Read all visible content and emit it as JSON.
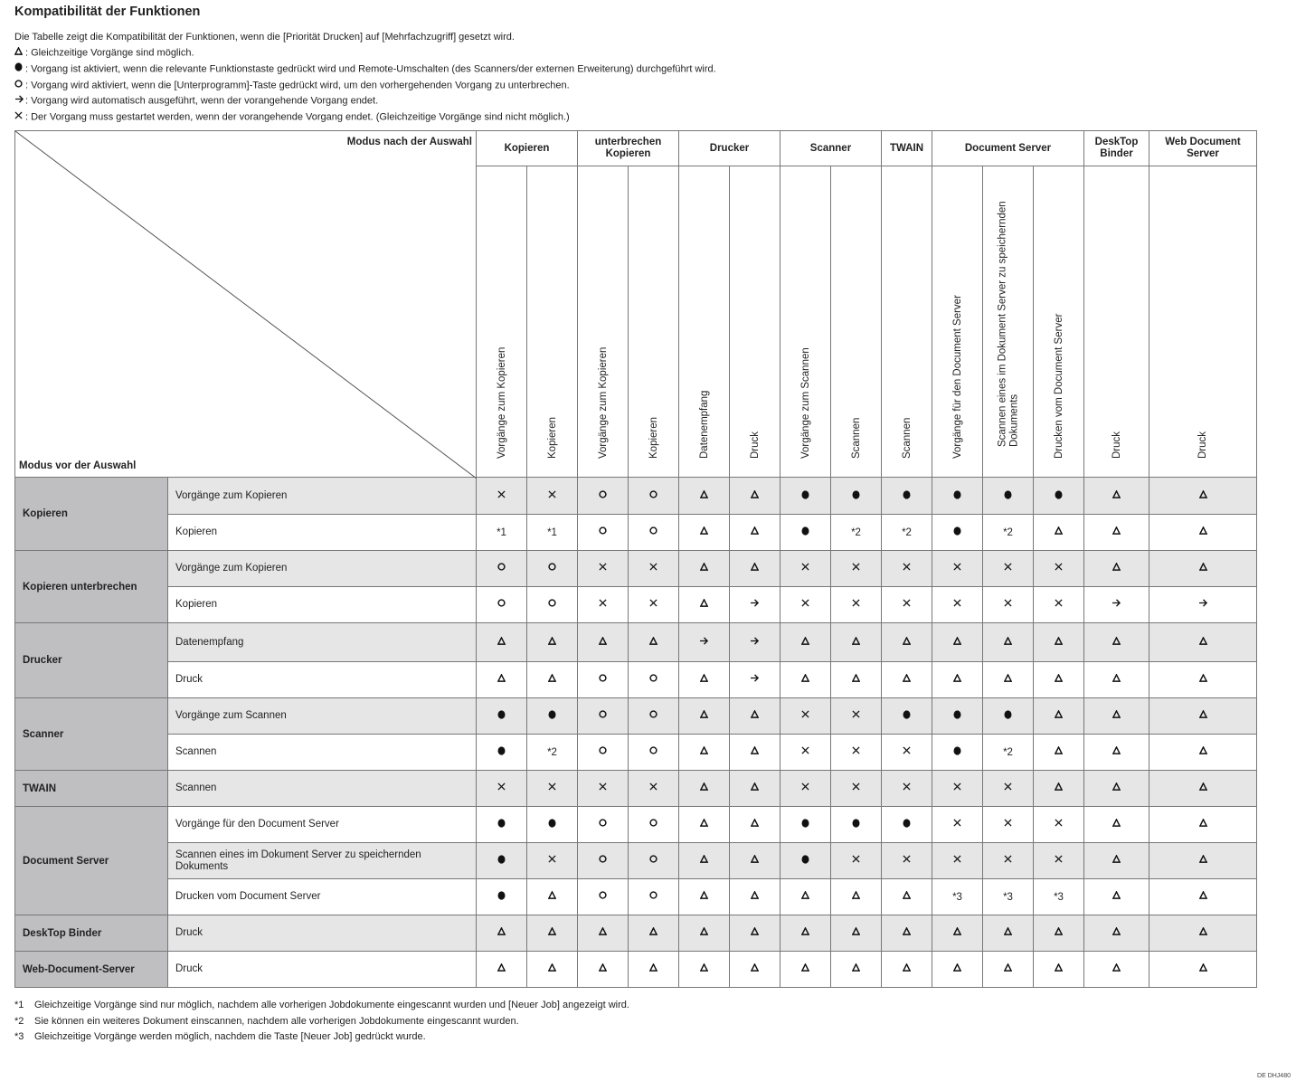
{
  "title": "Kompatibilität der Funktionen",
  "legend": {
    "intro": "Die Tabelle zeigt die Kompatibilität der Funktionen, wenn die [Priorität Drucken] auf [Mehrfachzugriff] gesetzt wird.",
    "items": [
      {
        "icon": "tri",
        "text": ": Gleichzeitige Vorgänge sind möglich."
      },
      {
        "icon": "dot",
        "text": ": Vorgang ist aktiviert, wenn die relevante Funktionstaste gedrückt wird und Remote-Umschalten (des Scanners/der externen Erweiterung) durchgeführt wird."
      },
      {
        "icon": "o",
        "text": ": Vorgang wird aktiviert, wenn die [Unterprogramm]-Taste gedrückt wird, um den vorhergehenden Vorgang zu unterbrechen."
      },
      {
        "icon": "arrow",
        "text": ": Vorgang wird automatisch ausgeführt, wenn der vorangehende Vorgang endet."
      },
      {
        "icon": "x",
        "text": ": Der Vorgang muss gestartet werden, wenn der vorangehende Vorgang endet. (Gleichzeitige Vorgänge sind nicht möglich.)"
      }
    ]
  },
  "table": {
    "corner_top": "Modus nach der Auswahl",
    "corner_bottom": "Modus vor der Auswahl",
    "column_groups": [
      {
        "label": "Kopieren",
        "cols": [
          "Vorgänge zum Kopieren",
          "Kopieren"
        ]
      },
      {
        "label": "unterbrechen Kopieren",
        "cols": [
          "Vorgänge zum Kopieren",
          "Kopieren"
        ]
      },
      {
        "label": "Drucker",
        "cols": [
          "Datenempfang",
          "Druck"
        ]
      },
      {
        "label": "Scanner",
        "cols": [
          "Vorgänge zum Scannen",
          "Scannen"
        ]
      },
      {
        "label": "TWAIN",
        "cols": [
          "Scannen"
        ]
      },
      {
        "label": "Document Server",
        "cols": [
          "Vorgänge für den Document Server",
          "Scannen eines im Dokument Server zu speichernden Dokuments",
          "Drucken vom Document Server"
        ]
      },
      {
        "label": "DeskTop Binder",
        "cols": [
          "Druck"
        ]
      },
      {
        "label": "Web Document Server",
        "cols": [
          "Druck"
        ]
      }
    ],
    "row_groups": [
      {
        "label": "Kopieren",
        "rows": [
          {
            "label": "Vorgänge zum Kopieren",
            "cells": [
              "x",
              "x",
              "o",
              "o",
              "tri",
              "tri",
              "dot",
              "dot",
              "dot",
              "dot",
              "dot",
              "dot",
              "tri",
              "tri"
            ]
          },
          {
            "label": "Kopieren",
            "cells": [
              "*1",
              "*1",
              "o",
              "o",
              "tri",
              "tri",
              "dot",
              "*2",
              "*2",
              "dot",
              "*2",
              "tri",
              "tri",
              "tri"
            ]
          }
        ]
      },
      {
        "label": "Kopieren unterbrechen",
        "rows": [
          {
            "label": "Vorgänge zum Kopieren",
            "cells": [
              "o",
              "o",
              "x",
              "x",
              "tri",
              "tri",
              "x",
              "x",
              "x",
              "x",
              "x",
              "x",
              "tri",
              "tri"
            ]
          },
          {
            "label": "Kopieren",
            "cells": [
              "o",
              "o",
              "x",
              "x",
              "tri",
              "arrow",
              "x",
              "x",
              "x",
              "x",
              "x",
              "x",
              "arrow",
              "arrow"
            ]
          }
        ]
      },
      {
        "label": "Drucker",
        "rows": [
          {
            "label": "Datenempfang",
            "cells": [
              "tri",
              "tri",
              "tri",
              "tri",
              "arrow",
              "arrow",
              "tri",
              "tri",
              "tri",
              "tri",
              "tri",
              "tri",
              "tri",
              "tri"
            ]
          },
          {
            "label": "Druck",
            "cells": [
              "tri",
              "tri",
              "o",
              "o",
              "tri",
              "arrow",
              "tri",
              "tri",
              "tri",
              "tri",
              "tri",
              "tri",
              "tri",
              "tri"
            ]
          }
        ]
      },
      {
        "label": "Scanner",
        "rows": [
          {
            "label": "Vorgänge zum Scannen",
            "cells": [
              "dot",
              "dot",
              "o",
              "o",
              "tri",
              "tri",
              "x",
              "x",
              "dot",
              "dot",
              "dot",
              "tri",
              "tri",
              "tri"
            ]
          },
          {
            "label": "Scannen",
            "cells": [
              "dot",
              "*2",
              "o",
              "o",
              "tri",
              "tri",
              "x",
              "x",
              "x",
              "dot",
              "*2",
              "tri",
              "tri",
              "tri"
            ]
          }
        ]
      },
      {
        "label": "TWAIN",
        "rows": [
          {
            "label": "Scannen",
            "cells": [
              "x",
              "x",
              "x",
              "x",
              "tri",
              "tri",
              "x",
              "x",
              "x",
              "x",
              "x",
              "tri",
              "tri",
              "tri"
            ]
          }
        ]
      },
      {
        "label": "Document Server",
        "rows": [
          {
            "label": "Vorgänge für den Document Server",
            "cells": [
              "dot",
              "dot",
              "o",
              "o",
              "tri",
              "tri",
              "dot",
              "dot",
              "dot",
              "x",
              "x",
              "x",
              "tri",
              "tri"
            ]
          },
          {
            "label": "Scannen eines im Dokument Server zu speichernden Dokuments",
            "cells": [
              "dot",
              "x",
              "o",
              "o",
              "tri",
              "tri",
              "dot",
              "x",
              "x",
              "x",
              "x",
              "x",
              "tri",
              "tri"
            ]
          },
          {
            "label": "Drucken vom Document Server",
            "cells": [
              "dot",
              "tri",
              "o",
              "o",
              "tri",
              "tri",
              "tri",
              "tri",
              "tri",
              "*3",
              "*3",
              "*3",
              "tri",
              "tri"
            ]
          }
        ]
      },
      {
        "label": "DeskTop Binder",
        "rows": [
          {
            "label": "Druck",
            "cells": [
              "tri",
              "tri",
              "tri",
              "tri",
              "tri",
              "tri",
              "tri",
              "tri",
              "tri",
              "tri",
              "tri",
              "tri",
              "tri",
              "tri"
            ]
          }
        ]
      },
      {
        "label": "Web-Document-Server",
        "rows": [
          {
            "label": "Druck",
            "cells": [
              "tri",
              "tri",
              "tri",
              "tri",
              "tri",
              "tri",
              "tri",
              "tri",
              "tri",
              "tri",
              "tri",
              "tri",
              "tri",
              "tri"
            ]
          }
        ]
      }
    ]
  },
  "footnotes": [
    {
      "mark": "*1",
      "text": "Gleichzeitige Vorgänge sind nur möglich, nachdem alle vorherigen Jobdokumente eingescannt wurden und [Neuer Job] angezeigt wird."
    },
    {
      "mark": "*2",
      "text": "Sie können ein weiteres Dokument einscannen, nachdem alle vorherigen Jobdokumente eingescannt wurden."
    },
    {
      "mark": "*3",
      "text": "Gleichzeitige Vorgänge werden möglich, nachdem die Taste [Neuer Job] gedrückt wurde."
    }
  ],
  "doc_code": "DE DHJ480"
}
